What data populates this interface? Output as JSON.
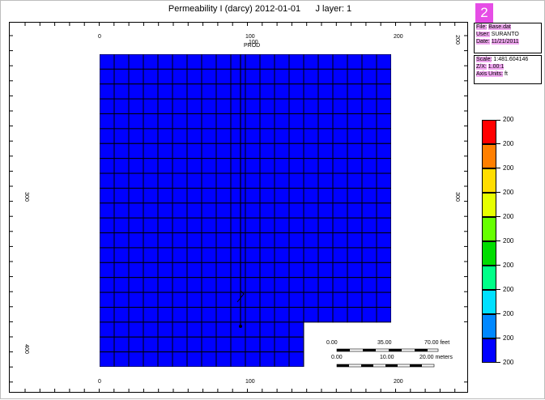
{
  "window": {
    "title": "Permeability I (darcy) 2012-01-01      J layer: 1"
  },
  "axes": {
    "top_ticks": [
      "0",
      "100",
      "200"
    ],
    "bottom_ticks": [
      "0",
      "100",
      "200"
    ],
    "left_ticks": [
      "300",
      "400"
    ],
    "right_ticks": [
      "200",
      "300"
    ]
  },
  "grid": {
    "columns": 20,
    "rows": 21,
    "cell_color": "#0000ff",
    "line_color": "#000000",
    "cutout_cols": 14,
    "cutout_rows": 3
  },
  "well": {
    "name": "PROD",
    "name_overlay": "100"
  },
  "info_panel": {
    "header": "2",
    "file_label": "File:",
    "file_value": "Base.dat",
    "user_label": "User:",
    "user_value": "SURANTO",
    "date_label": "Date:",
    "date_value": "11/21/2011",
    "scale_label": "Scale:",
    "scale_value": "1:481.604146",
    "zx_label": "Z/X:",
    "zx_value": "1.00:1",
    "axis_units_label": "Axis Units:",
    "axis_units_value": "ft"
  },
  "legend": {
    "entries": [
      {
        "label": "200",
        "color": "#ff0000"
      },
      {
        "label": "200",
        "color": "#ff7f00"
      },
      {
        "label": "200",
        "color": "#ffdd00"
      },
      {
        "label": "200",
        "color": "#e6ff00"
      },
      {
        "label": "200",
        "color": "#66ff00"
      },
      {
        "label": "200",
        "color": "#00dd00"
      },
      {
        "label": "200",
        "color": "#00ff88"
      },
      {
        "label": "200",
        "color": "#00e0ff"
      },
      {
        "label": "200",
        "color": "#0088ff"
      },
      {
        "label": "200",
        "color": "#0000ff"
      }
    ],
    "top_label": "200"
  },
  "scale_bar": {
    "feet_labels": [
      "0.00",
      "35.00",
      "70.00 feet"
    ],
    "meter_labels": [
      "0.00",
      "10.00",
      "20.00 meters"
    ]
  },
  "colors": {
    "info_header_bg": "#e64de6",
    "info_highlight": "#f0a8f0"
  }
}
